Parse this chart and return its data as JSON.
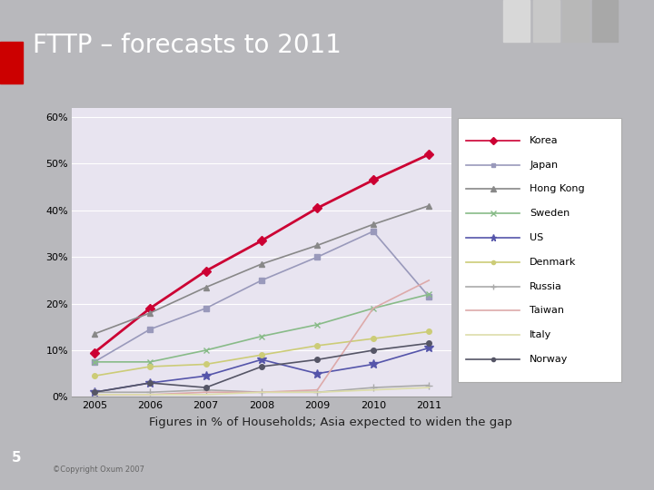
{
  "title": "FTTP – forecasts to 2011",
  "subtitle": "Figures in % of Households; Asia expected to widen the gap",
  "slide_number": "5",
  "copyright": "©Copyright Oxum 2007",
  "years": [
    2005,
    2006,
    2007,
    2008,
    2009,
    2010,
    2011
  ],
  "series": [
    {
      "name": "Korea",
      "color": "#cc0033",
      "marker": "D",
      "markersize": 5,
      "linewidth": 2.0,
      "values": [
        9.5,
        19.0,
        27.0,
        33.5,
        40.5,
        46.5,
        52.0
      ]
    },
    {
      "name": "Japan",
      "color": "#9999bb",
      "marker": "s",
      "markersize": 4,
      "linewidth": 1.2,
      "values": [
        7.5,
        14.5,
        19.0,
        25.0,
        30.0,
        35.5,
        21.5
      ]
    },
    {
      "name": "Hong Kong",
      "color": "#888888",
      "marker": "^",
      "markersize": 5,
      "linewidth": 1.2,
      "values": [
        13.5,
        18.0,
        23.5,
        28.5,
        32.5,
        37.0,
        41.0
      ]
    },
    {
      "name": "Sweden",
      "color": "#88bb88",
      "marker": "x",
      "markersize": 5,
      "linewidth": 1.2,
      "values": [
        7.5,
        7.5,
        10.0,
        13.0,
        15.5,
        19.0,
        22.0
      ]
    },
    {
      "name": "US",
      "color": "#5555aa",
      "marker": "*",
      "markersize": 7,
      "linewidth": 1.2,
      "values": [
        1.0,
        3.0,
        4.5,
        8.0,
        5.0,
        7.0,
        10.5
      ]
    },
    {
      "name": "Denmark",
      "color": "#cccc77",
      "marker": "o",
      "markersize": 4,
      "linewidth": 1.2,
      "values": [
        4.5,
        6.5,
        7.0,
        9.0,
        11.0,
        12.5,
        14.0
      ]
    },
    {
      "name": "Russia",
      "color": "#aaaaaa",
      "marker": "+",
      "markersize": 6,
      "linewidth": 1.2,
      "values": [
        1.0,
        1.0,
        1.5,
        1.0,
        1.0,
        2.0,
        2.5
      ]
    },
    {
      "name": "Taiwan",
      "color": "#ddaaaa",
      "marker": "None",
      "markersize": 0,
      "linewidth": 1.2,
      "values": [
        0.5,
        0.5,
        1.0,
        1.0,
        1.5,
        19.0,
        25.0
      ]
    },
    {
      "name": "Italy",
      "color": "#ddddaa",
      "marker": "None",
      "markersize": 0,
      "linewidth": 1.2,
      "values": [
        0.5,
        0.5,
        0.5,
        1.0,
        1.0,
        1.5,
        2.0
      ]
    },
    {
      "name": "Norway",
      "color": "#555566",
      "marker": "o",
      "markersize": 4,
      "linewidth": 1.2,
      "values": [
        1.0,
        3.0,
        2.0,
        6.5,
        8.0,
        10.0,
        11.5
      ]
    }
  ],
  "ylim": [
    0,
    62
  ],
  "yticks": [
    0,
    10,
    20,
    30,
    40,
    50,
    60
  ],
  "ytick_labels": [
    "0%",
    "10%",
    "20%",
    "30%",
    "40%",
    "50%",
    "60%"
  ],
  "plot_bg_color": "#e8e4f0",
  "slide_bg_color": "#b8b8bc",
  "title_bg_color": "#a0a0a8",
  "title_color": "#ffffff",
  "subtitle_bg_color": "#d4e8d4",
  "subtitle_color": "#222222",
  "accent_color": "#cc0000",
  "legend_fontsize": 8,
  "axis_fontsize": 8,
  "card_bg": "#ffffff",
  "deco_colors": [
    "#d8d8d8",
    "#c8c8c8",
    "#b8b8b8",
    "#a8a8a8"
  ]
}
